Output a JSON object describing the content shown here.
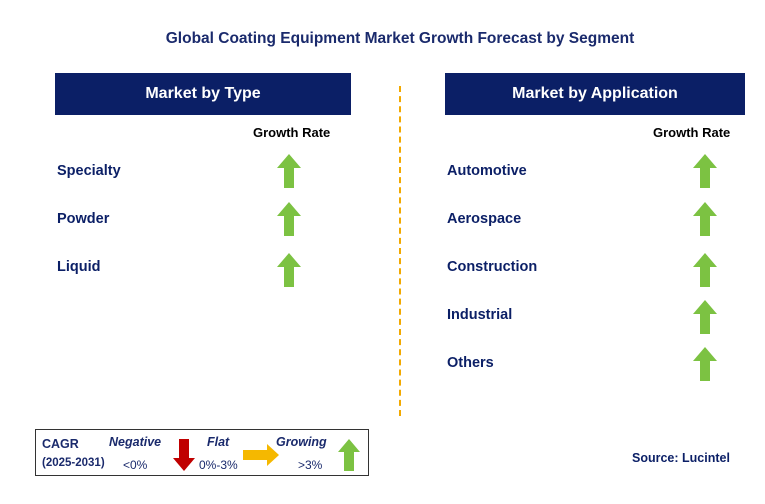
{
  "title": "Global Coating Equipment Market Growth Forecast by Segment",
  "left_panel": {
    "header": "Market by Type",
    "growth_rate_label": "Growth Rate",
    "rows": [
      {
        "label": "Specialty",
        "trend": "growing"
      },
      {
        "label": "Powder",
        "trend": "growing"
      },
      {
        "label": "Liquid",
        "trend": "growing"
      }
    ]
  },
  "right_panel": {
    "header": "Market by Application",
    "growth_rate_label": "Growth Rate",
    "rows": [
      {
        "label": "Automotive",
        "trend": "growing"
      },
      {
        "label": "Aerospace",
        "trend": "growing"
      },
      {
        "label": "Construction",
        "trend": "growing"
      },
      {
        "label": "Industrial",
        "trend": "growing"
      },
      {
        "label": "Others",
        "trend": "growing"
      }
    ]
  },
  "legend": {
    "cagr_label": "CAGR",
    "period": "(2025-2031)",
    "negative_label": "Negative",
    "negative_range": "<0%",
    "flat_label": "Flat",
    "flat_range": "0%-3%",
    "growing_label": "Growing",
    "growing_range": ">3%"
  },
  "source": "Source: Lucintel",
  "colors": {
    "header_bg": "#0b1f66",
    "growing_arrow": "#7cc242",
    "negative_arrow": "#c00000",
    "flat_arrow": "#f5b800",
    "divider": "#f2a900"
  },
  "icons": {
    "growing": "arrow-up-icon",
    "negative": "arrow-down-icon",
    "flat": "arrow-right-icon"
  }
}
